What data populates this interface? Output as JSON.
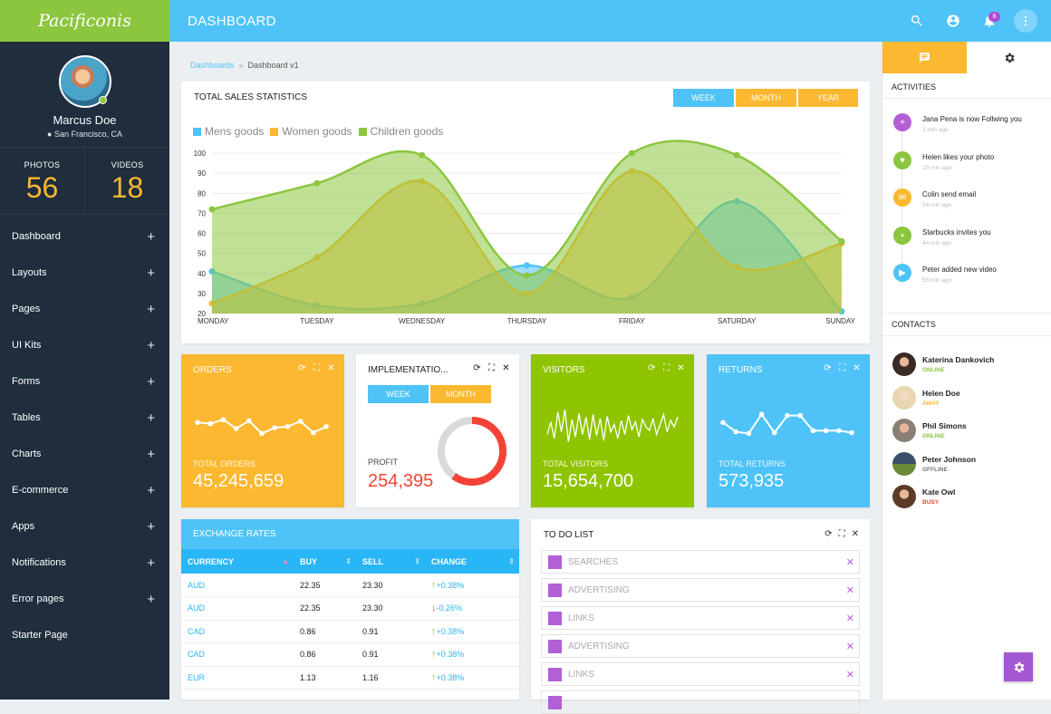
{
  "app": {
    "logo": "Pacificonis",
    "title": "DASHBOARD",
    "notif_count": "8"
  },
  "profile": {
    "name": "Marcus Doe",
    "location": "San Francisco, CA",
    "photos_label": "PHOTOS",
    "photos": "56",
    "videos_label": "VIDEOS",
    "videos": "18"
  },
  "nav": [
    "Dashboard",
    "Layouts",
    "Pages",
    "UI Kits",
    "Forms",
    "Tables",
    "Charts",
    "E-commerce",
    "Apps",
    "Notifications",
    "Error pages",
    "Starter Page"
  ],
  "breadcrumb": {
    "root": "Dashboards",
    "current": "Dashboard v1"
  },
  "sales": {
    "title": "TOTAL SALES STATISTICS",
    "week": "WEEK",
    "month": "MONTH",
    "year": "YEAR"
  },
  "colors": {
    "blue": "#4fc3f7",
    "orange": "#fbb830",
    "green": "#8cc63f",
    "red": "#f44336",
    "purple": "#b35fd6"
  },
  "chart_data": {
    "type": "area",
    "categories": [
      "MONDAY",
      "TUESDAY",
      "WEDNESDAY",
      "THURSDAY",
      "FRIDAY",
      "SATURDAY",
      "SUNDAY"
    ],
    "ylim": [
      20,
      100
    ],
    "yticks": [
      100,
      90,
      80,
      70,
      60,
      50,
      40,
      30,
      20
    ],
    "series": [
      {
        "name": "Mens goods",
        "color": "#4fc3f7",
        "values": [
          41,
          24,
          25,
          44,
          28,
          76,
          21
        ]
      },
      {
        "name": "Women goods",
        "color": "#fbb830",
        "values": [
          25,
          48,
          86,
          30,
          91,
          43,
          55
        ]
      },
      {
        "name": "Children goods",
        "color": "#8cc63f",
        "values": [
          72,
          85,
          99,
          39,
          100,
          99,
          56
        ]
      }
    ]
  },
  "cards": {
    "orders": {
      "title": "ORDERS",
      "label": "TOTAL ORDERS",
      "value": "45,245,659"
    },
    "impl": {
      "title": "IMPLEMENTATIO...",
      "week": "WEEK",
      "month": "MONTH",
      "label": "PROFIT",
      "value": "254,395",
      "donut_fraction": 0.6
    },
    "visitors": {
      "title": "VISITORS",
      "label": "TOTAL VISITORS",
      "value": "15,654,700"
    },
    "returns": {
      "title": "RETURNS",
      "label": "TOTAL RETURNS",
      "value": "573,935"
    }
  },
  "sparklines": {
    "orders": [
      55,
      52,
      62,
      40,
      59,
      28,
      42,
      45,
      58,
      30,
      45
    ],
    "visitors": [
      30,
      55,
      22,
      75,
      35,
      80,
      15,
      60,
      25,
      72,
      30,
      65,
      20,
      70,
      28,
      62,
      18,
      66,
      35,
      50,
      22,
      58,
      30,
      68,
      40,
      55,
      25,
      60,
      45,
      38,
      62,
      30,
      50,
      70,
      35,
      58,
      45,
      65
    ],
    "returns": [
      55,
      32,
      28,
      75,
      30,
      72,
      72,
      35,
      35,
      35,
      30
    ]
  },
  "exchange": {
    "title": "EXCHANGE RATES",
    "headers": [
      "CURRENCY",
      "BUY",
      "SELL",
      "CHANGE"
    ],
    "rows": [
      {
        "cur": "AUD",
        "buy": "22.35",
        "sell": "23.30",
        "change": "+0.38%",
        "dir": "up"
      },
      {
        "cur": "AUD",
        "buy": "22.35",
        "sell": "23.30",
        "change": "-0.26%",
        "dir": "down"
      },
      {
        "cur": "CAD",
        "buy": "0.86",
        "sell": "0.91",
        "change": "+0.38%",
        "dir": "up"
      },
      {
        "cur": "CAD",
        "buy": "0.86",
        "sell": "0.91",
        "change": "+0.38%",
        "dir": "up"
      },
      {
        "cur": "EUR",
        "buy": "1.13",
        "sell": "1.16",
        "change": "+0.38%",
        "dir": "up"
      }
    ]
  },
  "todo": {
    "title": "TO DO LIST",
    "items": [
      "SEARCHES",
      "ADVERTISING",
      "LINKS",
      "ADVERTISING",
      "LINKS"
    ]
  },
  "activities": {
    "title": "ACTIVITIES",
    "items": [
      {
        "text": "Jana Pena is now Follwing you",
        "time": "2 min ago",
        "color": "#b35fd6",
        "icon": "plus-icon"
      },
      {
        "text": "Helen likes your photo",
        "time": "23 min ago",
        "color": "#8cc63f",
        "icon": "heart-icon"
      },
      {
        "text": "Colin send email",
        "time": "54 min ago",
        "color": "#fbb830",
        "icon": "mail-icon"
      },
      {
        "text": "Starbucks invites you",
        "time": "44 min ago",
        "color": "#8cc63f",
        "icon": "message-icon"
      },
      {
        "text": "Peter added new video",
        "time": "55 min ago",
        "color": "#4fc3f7",
        "icon": "video-icon"
      }
    ]
  },
  "contacts": {
    "title": "CONTACTS",
    "items": [
      {
        "name": "Katerina Dankovich",
        "status": "ONLINE",
        "color": "#8cc63f"
      },
      {
        "name": "Helen Doe",
        "status": "AWAY",
        "color": "#fbb830"
      },
      {
        "name": "Phil Simons",
        "status": "ONLINE",
        "color": "#8cc63f"
      },
      {
        "name": "Peter Johnson",
        "status": "OFFLINE",
        "color": "#777777"
      },
      {
        "name": "Kate Owl",
        "status": "BUSY",
        "color": "#f44336"
      }
    ]
  }
}
